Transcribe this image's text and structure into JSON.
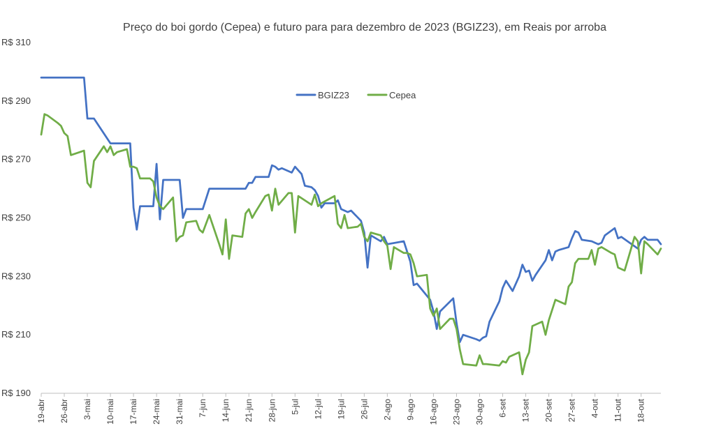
{
  "chart_data": {
    "type": "line",
    "title": "Preço do boi gordo (Cepea) e futuro para para dezembro de 2023 (BGIZ23), em Reais por arroba",
    "xlabel": "",
    "ylabel": "",
    "ylim": [
      190,
      310
    ],
    "y_ticks": [
      {
        "value": 190,
        "label": "R$ 190"
      },
      {
        "value": 210,
        "label": "R$ 210"
      },
      {
        "value": 230,
        "label": "R$ 230"
      },
      {
        "value": 250,
        "label": "R$ 250"
      },
      {
        "value": 270,
        "label": "R$ 270"
      },
      {
        "value": 290,
        "label": "R$ 290"
      },
      {
        "value": 310,
        "label": "R$ 310"
      }
    ],
    "x_axis": {
      "start": "2023-04-19",
      "end": "2023-10-24",
      "ticks": [
        {
          "date": "2023-04-19",
          "label": "19-abr"
        },
        {
          "date": "2023-04-26",
          "label": "26-abr"
        },
        {
          "date": "2023-05-03",
          "label": "3-mai"
        },
        {
          "date": "2023-05-10",
          "label": "10-mai"
        },
        {
          "date": "2023-05-17",
          "label": "17-mai"
        },
        {
          "date": "2023-05-24",
          "label": "24-mai"
        },
        {
          "date": "2023-05-31",
          "label": "31-mai"
        },
        {
          "date": "2023-06-07",
          "label": "7-jun"
        },
        {
          "date": "2023-06-14",
          "label": "14-jun"
        },
        {
          "date": "2023-06-21",
          "label": "21-jun"
        },
        {
          "date": "2023-06-28",
          "label": "28-jun"
        },
        {
          "date": "2023-07-05",
          "label": "5-jul"
        },
        {
          "date": "2023-07-12",
          "label": "12-jul"
        },
        {
          "date": "2023-07-19",
          "label": "19-jul"
        },
        {
          "date": "2023-07-26",
          "label": "26-jul"
        },
        {
          "date": "2023-08-02",
          "label": "2-ago"
        },
        {
          "date": "2023-08-09",
          "label": "9-ago"
        },
        {
          "date": "2023-08-16",
          "label": "16-ago"
        },
        {
          "date": "2023-08-23",
          "label": "23-ago"
        },
        {
          "date": "2023-08-30",
          "label": "30-ago"
        },
        {
          "date": "2023-09-06",
          "label": "6-set"
        },
        {
          "date": "2023-09-13",
          "label": "13-set"
        },
        {
          "date": "2023-09-20",
          "label": "20-set"
        },
        {
          "date": "2023-09-27",
          "label": "27-set"
        },
        {
          "date": "2023-10-04",
          "label": "4-out"
        },
        {
          "date": "2023-10-11",
          "label": "11-out"
        },
        {
          "date": "2023-10-18",
          "label": "18-out"
        }
      ]
    },
    "grid": false,
    "legend": {
      "position": "top-center"
    },
    "series": [
      {
        "name": "BGIZ23",
        "color": "#4472C4",
        "points": [
          [
            "2023-04-19",
            298.0
          ],
          [
            "2023-05-02",
            298.0
          ],
          [
            "2023-05-03",
            284.0
          ],
          [
            "2023-05-05",
            284.0
          ],
          [
            "2023-05-10",
            275.5
          ],
          [
            "2023-05-16",
            275.5
          ],
          [
            "2023-05-17",
            253.5
          ],
          [
            "2023-05-18",
            246.0
          ],
          [
            "2023-05-19",
            254.0
          ],
          [
            "2023-05-23",
            254.0
          ],
          [
            "2023-05-24",
            268.5
          ],
          [
            "2023-05-25",
            249.5
          ],
          [
            "2023-05-26",
            263.0
          ],
          [
            "2023-05-31",
            263.0
          ],
          [
            "2023-06-01",
            250.0
          ],
          [
            "2023-06-02",
            253.0
          ],
          [
            "2023-06-07",
            253.0
          ],
          [
            "2023-06-09",
            260.0
          ],
          [
            "2023-06-20",
            260.0
          ],
          [
            "2023-06-21",
            262.0
          ],
          [
            "2023-06-22",
            262.0
          ],
          [
            "2023-06-23",
            264.0
          ],
          [
            "2023-06-27",
            264.0
          ],
          [
            "2023-06-28",
            268.0
          ],
          [
            "2023-06-29",
            267.5
          ],
          [
            "2023-06-30",
            266.5
          ],
          [
            "2023-07-01",
            267.0
          ],
          [
            "2023-07-04",
            265.5
          ],
          [
            "2023-07-05",
            267.5
          ],
          [
            "2023-07-07",
            265.0
          ],
          [
            "2023-07-08",
            261.0
          ],
          [
            "2023-07-10",
            260.5
          ],
          [
            "2023-07-11",
            259.5
          ],
          [
            "2023-07-12",
            257.5
          ],
          [
            "2023-07-13",
            253.5
          ],
          [
            "2023-07-14",
            255.0
          ],
          [
            "2023-07-17",
            255.0
          ],
          [
            "2023-07-18",
            256.0
          ],
          [
            "2023-07-19",
            253.0
          ],
          [
            "2023-07-20",
            252.5
          ],
          [
            "2023-07-21",
            252.0
          ],
          [
            "2023-07-22",
            252.5
          ],
          [
            "2023-07-25",
            249.0
          ],
          [
            "2023-07-26",
            245.0
          ],
          [
            "2023-07-27",
            233.0
          ],
          [
            "2023-07-28",
            244.0
          ],
          [
            "2023-07-31",
            242.0
          ],
          [
            "2023-08-01",
            243.5
          ],
          [
            "2023-08-02",
            241.0
          ],
          [
            "2023-08-07",
            242.0
          ],
          [
            "2023-08-09",
            235.0
          ],
          [
            "2023-08-10",
            227.0
          ],
          [
            "2023-08-11",
            227.5
          ],
          [
            "2023-08-15",
            222.0
          ],
          [
            "2023-08-16",
            218.0
          ],
          [
            "2023-08-17",
            212.0
          ],
          [
            "2023-08-18",
            218.0
          ],
          [
            "2023-08-22",
            222.5
          ],
          [
            "2023-08-23",
            214.0
          ],
          [
            "2023-08-24",
            207.5
          ],
          [
            "2023-08-25",
            210.0
          ],
          [
            "2023-08-29",
            208.5
          ],
          [
            "2023-08-30",
            208.0
          ],
          [
            "2023-08-31",
            209.0
          ],
          [
            "2023-09-01",
            209.5
          ],
          [
            "2023-09-02",
            214.5
          ],
          [
            "2023-09-05",
            221.5
          ],
          [
            "2023-09-06",
            226.0
          ],
          [
            "2023-09-07",
            228.5
          ],
          [
            "2023-09-09",
            225.0
          ],
          [
            "2023-09-11",
            230.0
          ],
          [
            "2023-09-12",
            234.0
          ],
          [
            "2023-09-13",
            231.5
          ],
          [
            "2023-09-14",
            232.0
          ],
          [
            "2023-09-15",
            228.5
          ],
          [
            "2023-09-16",
            230.5
          ],
          [
            "2023-09-19",
            235.5
          ],
          [
            "2023-09-20",
            239.0
          ],
          [
            "2023-09-21",
            235.5
          ],
          [
            "2023-09-22",
            238.5
          ],
          [
            "2023-09-23",
            239.0
          ],
          [
            "2023-09-26",
            240.0
          ],
          [
            "2023-09-27",
            243.0
          ],
          [
            "2023-09-28",
            245.5
          ],
          [
            "2023-09-29",
            245.0
          ],
          [
            "2023-09-30",
            242.5
          ],
          [
            "2023-10-03",
            242.0
          ],
          [
            "2023-10-04",
            241.5
          ],
          [
            "2023-10-05",
            241.0
          ],
          [
            "2023-10-06",
            241.5
          ],
          [
            "2023-10-07",
            244.0
          ],
          [
            "2023-10-10",
            246.5
          ],
          [
            "2023-10-11",
            243.0
          ],
          [
            "2023-10-12",
            243.5
          ],
          [
            "2023-10-17",
            239.5
          ],
          [
            "2023-10-18",
            242.5
          ],
          [
            "2023-10-19",
            243.5
          ],
          [
            "2023-10-20",
            242.5
          ],
          [
            "2023-10-23",
            242.5
          ],
          [
            "2023-10-24",
            241.0
          ]
        ]
      },
      {
        "name": "Cepea",
        "color": "#70AD47",
        "points": [
          [
            "2023-04-19",
            278.5
          ],
          [
            "2023-04-20",
            285.5
          ],
          [
            "2023-04-21",
            285.0
          ],
          [
            "2023-04-24",
            282.5
          ],
          [
            "2023-04-25",
            281.5
          ],
          [
            "2023-04-26",
            279.0
          ],
          [
            "2023-04-27",
            278.0
          ],
          [
            "2023-04-28",
            271.5
          ],
          [
            "2023-05-02",
            273.0
          ],
          [
            "2023-05-03",
            262.0
          ],
          [
            "2023-05-04",
            260.5
          ],
          [
            "2023-05-05",
            269.5
          ],
          [
            "2023-05-08",
            274.5
          ],
          [
            "2023-05-09",
            272.5
          ],
          [
            "2023-05-10",
            274.5
          ],
          [
            "2023-05-11",
            271.5
          ],
          [
            "2023-05-12",
            272.5
          ],
          [
            "2023-05-15",
            273.5
          ],
          [
            "2023-05-16",
            267.5
          ],
          [
            "2023-05-17",
            267.5
          ],
          [
            "2023-05-18",
            267.0
          ],
          [
            "2023-05-19",
            263.5
          ],
          [
            "2023-05-22",
            263.5
          ],
          [
            "2023-05-23",
            262.5
          ],
          [
            "2023-05-24",
            257.0
          ],
          [
            "2023-05-25",
            254.0
          ],
          [
            "2023-05-26",
            253.0
          ],
          [
            "2023-05-29",
            257.0
          ],
          [
            "2023-05-30",
            242.0
          ],
          [
            "2023-05-31",
            243.5
          ],
          [
            "2023-06-01",
            244.0
          ],
          [
            "2023-06-02",
            248.5
          ],
          [
            "2023-06-05",
            249.0
          ],
          [
            "2023-06-06",
            246.0
          ],
          [
            "2023-06-07",
            245.0
          ],
          [
            "2023-06-09",
            251.0
          ],
          [
            "2023-06-12",
            241.0
          ],
          [
            "2023-06-13",
            237.5
          ],
          [
            "2023-06-14",
            249.5
          ],
          [
            "2023-06-15",
            236.0
          ],
          [
            "2023-06-16",
            244.0
          ],
          [
            "2023-06-19",
            243.5
          ],
          [
            "2023-06-20",
            251.5
          ],
          [
            "2023-06-21",
            253.0
          ],
          [
            "2023-06-22",
            250.0
          ],
          [
            "2023-06-23",
            252.0
          ],
          [
            "2023-06-26",
            257.5
          ],
          [
            "2023-06-27",
            258.0
          ],
          [
            "2023-06-28",
            252.5
          ],
          [
            "2023-06-29",
            260.0
          ],
          [
            "2023-06-30",
            254.5
          ],
          [
            "2023-07-03",
            258.5
          ],
          [
            "2023-07-04",
            258.5
          ],
          [
            "2023-07-05",
            245.0
          ],
          [
            "2023-07-06",
            257.5
          ],
          [
            "2023-07-10",
            254.5
          ],
          [
            "2023-07-11",
            258.0
          ],
          [
            "2023-07-12",
            254.0
          ],
          [
            "2023-07-13",
            255.0
          ],
          [
            "2023-07-17",
            257.5
          ],
          [
            "2023-07-18",
            248.0
          ],
          [
            "2023-07-19",
            246.5
          ],
          [
            "2023-07-20",
            251.0
          ],
          [
            "2023-07-21",
            246.5
          ],
          [
            "2023-07-24",
            247.0
          ],
          [
            "2023-07-25",
            248.0
          ],
          [
            "2023-07-26",
            243.5
          ],
          [
            "2023-07-27",
            242.0
          ],
          [
            "2023-07-28",
            245.0
          ],
          [
            "2023-07-31",
            244.0
          ],
          [
            "2023-08-01",
            242.0
          ],
          [
            "2023-08-02",
            240.5
          ],
          [
            "2023-08-03",
            232.5
          ],
          [
            "2023-08-04",
            240.0
          ],
          [
            "2023-08-07",
            238.0
          ],
          [
            "2023-08-08",
            238.0
          ],
          [
            "2023-08-09",
            237.5
          ],
          [
            "2023-08-10",
            234.5
          ],
          [
            "2023-08-11",
            230.0
          ],
          [
            "2023-08-14",
            230.5
          ],
          [
            "2023-08-15",
            219.0
          ],
          [
            "2023-08-16",
            216.5
          ],
          [
            "2023-08-17",
            219.0
          ],
          [
            "2023-08-18",
            212.0
          ],
          [
            "2023-08-21",
            215.5
          ],
          [
            "2023-08-22",
            215.5
          ],
          [
            "2023-08-23",
            212.0
          ],
          [
            "2023-08-24",
            205.0
          ],
          [
            "2023-08-25",
            200.0
          ],
          [
            "2023-08-29",
            199.5
          ],
          [
            "2023-08-30",
            203.0
          ],
          [
            "2023-08-31",
            200.0
          ],
          [
            "2023-09-01",
            200.0
          ],
          [
            "2023-09-05",
            199.5
          ],
          [
            "2023-09-06",
            201.0
          ],
          [
            "2023-09-07",
            200.5
          ],
          [
            "2023-09-08",
            202.5
          ],
          [
            "2023-09-11",
            204.0
          ],
          [
            "2023-09-12",
            196.5
          ],
          [
            "2023-09-13",
            201.5
          ],
          [
            "2023-09-14",
            204.0
          ],
          [
            "2023-09-15",
            213.0
          ],
          [
            "2023-09-18",
            214.5
          ],
          [
            "2023-09-19",
            210.0
          ],
          [
            "2023-09-20",
            215.0
          ],
          [
            "2023-09-22",
            222.0
          ],
          [
            "2023-09-25",
            220.5
          ],
          [
            "2023-09-26",
            226.5
          ],
          [
            "2023-09-27",
            228.0
          ],
          [
            "2023-09-28",
            234.5
          ],
          [
            "2023-09-29",
            236.0
          ],
          [
            "2023-10-02",
            236.0
          ],
          [
            "2023-10-03",
            239.0
          ],
          [
            "2023-10-04",
            234.0
          ],
          [
            "2023-10-05",
            239.5
          ],
          [
            "2023-10-06",
            240.0
          ],
          [
            "2023-10-09",
            238.0
          ],
          [
            "2023-10-10",
            237.5
          ],
          [
            "2023-10-11",
            233.0
          ],
          [
            "2023-10-13",
            232.0
          ],
          [
            "2023-10-16",
            243.5
          ],
          [
            "2023-10-17",
            242.0
          ],
          [
            "2023-10-18",
            231.0
          ],
          [
            "2023-10-19",
            242.0
          ],
          [
            "2023-10-20",
            241.0
          ],
          [
            "2023-10-23",
            237.5
          ],
          [
            "2023-10-24",
            239.5
          ]
        ]
      }
    ]
  }
}
